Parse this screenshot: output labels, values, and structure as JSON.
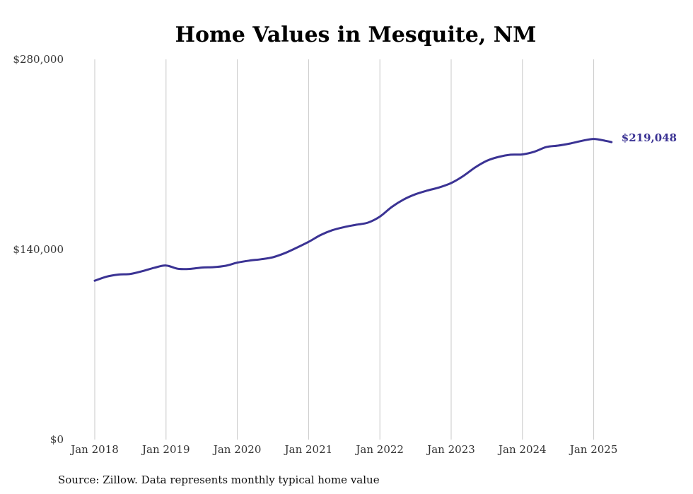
{
  "chart_data": {
    "type": "line",
    "title": "Home Values in Mesquite, NM",
    "xlabel": "",
    "ylabel": "",
    "ylim": [
      0,
      280000
    ],
    "y_ticks": [
      0,
      140000,
      280000
    ],
    "y_tick_labels": [
      "$0",
      "$140,000",
      "$280,000"
    ],
    "x_ticks": [
      "2018-01",
      "2019-01",
      "2020-01",
      "2021-01",
      "2022-01",
      "2023-01",
      "2024-01",
      "2025-01"
    ],
    "x_tick_labels": [
      "Jan 2018",
      "Jan 2019",
      "Jan 2020",
      "Jan 2021",
      "Jan 2022",
      "Jan 2023",
      "Jan 2024",
      "Jan 2025"
    ],
    "grid": "vertical",
    "color": "#3b3394",
    "end_label": "$219,048",
    "series": [
      {
        "x": [
          "2018-01",
          "2018-03",
          "2018-05",
          "2018-07",
          "2018-09",
          "2018-11",
          "2019-01",
          "2019-03",
          "2019-05",
          "2019-07",
          "2019-09",
          "2019-11",
          "2020-01",
          "2020-03",
          "2020-05",
          "2020-07",
          "2020-09",
          "2020-11",
          "2021-01",
          "2021-03",
          "2021-05",
          "2021-07",
          "2021-09",
          "2021-11",
          "2022-01",
          "2022-03",
          "2022-05",
          "2022-07",
          "2022-09",
          "2022-11",
          "2023-01",
          "2023-03",
          "2023-05",
          "2023-07",
          "2023-09",
          "2023-11",
          "2024-01",
          "2024-03",
          "2024-05",
          "2024-07",
          "2024-09",
          "2024-11",
          "2025-01",
          "2025-03",
          "2025-04"
        ],
        "values": [
          117000,
          120000,
          121500,
          122000,
          124000,
          126500,
          128200,
          125800,
          125700,
          126700,
          127000,
          128000,
          130300,
          131800,
          132800,
          134300,
          137300,
          141300,
          145600,
          150600,
          154200,
          156500,
          158200,
          159800,
          164200,
          171300,
          176800,
          180700,
          183400,
          185700,
          188900,
          194000,
          200300,
          205300,
          208200,
          209800,
          210000,
          212000,
          215400,
          216500,
          218000,
          220000,
          221400,
          220000,
          219048
        ]
      }
    ]
  },
  "source_note": "Source: Zillow. Data represents monthly typical home value"
}
